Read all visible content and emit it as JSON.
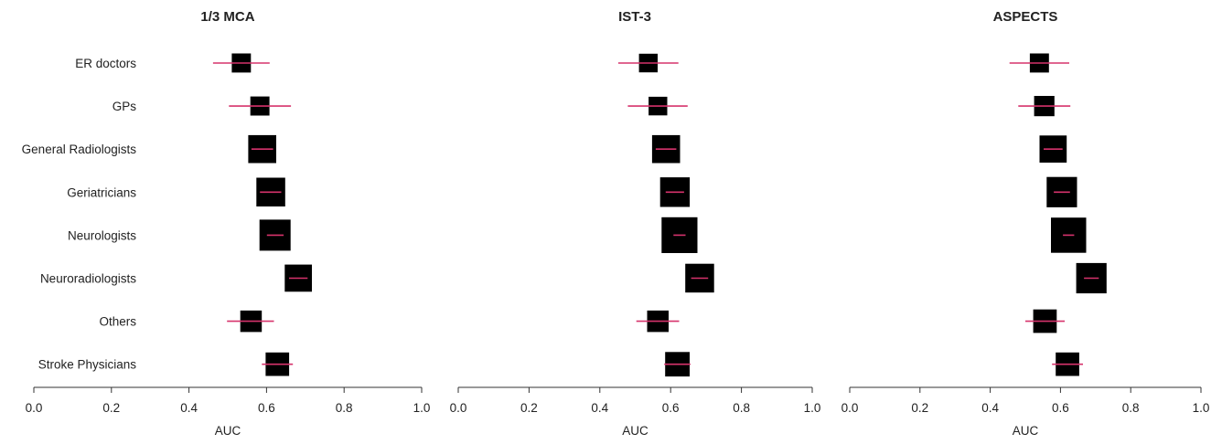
{
  "chart_data": [
    {
      "type": "forest",
      "title": "1/3 MCA",
      "xlabel": "AUC",
      "xlim": [
        0.0,
        1.0
      ],
      "xticks": [
        "0.0",
        "0.2",
        "0.4",
        "0.6",
        "0.8",
        "1.0"
      ],
      "categories": [
        "ER doctors",
        "GPs",
        "General Radiologists",
        "Geriatricians",
        "Neurologists",
        "Neuroradiologists",
        "Others",
        "Stroke Physicians"
      ],
      "estimates": [
        0.535,
        0.583,
        0.589,
        0.611,
        0.622,
        0.682,
        0.56,
        0.628
      ],
      "ci_low": [
        0.462,
        0.503,
        0.561,
        0.583,
        0.601,
        0.658,
        0.498,
        0.588
      ],
      "ci_high": [
        0.608,
        0.663,
        0.617,
        0.638,
        0.644,
        0.706,
        0.619,
        0.668
      ],
      "weights": [
        0.35,
        0.35,
        0.8,
        0.85,
        1.0,
        0.75,
        0.45,
        0.55
      ]
    },
    {
      "type": "forest",
      "title": "IST-3",
      "xlabel": "AUC",
      "xlim": [
        0.0,
        1.0
      ],
      "xticks": [
        "0.0",
        "0.2",
        "0.4",
        "0.6",
        "0.8",
        "1.0"
      ],
      "categories": [
        "ER doctors",
        "GPs",
        "General Radiologists",
        "Geriatricians",
        "Neurologists",
        "Neuroradiologists",
        "Others",
        "Stroke Physicians"
      ],
      "estimates": [
        0.537,
        0.564,
        0.587,
        0.612,
        0.625,
        0.682,
        0.564,
        0.619
      ],
      "ci_low": [
        0.452,
        0.479,
        0.558,
        0.586,
        0.608,
        0.658,
        0.503,
        0.582
      ],
      "ci_high": [
        0.622,
        0.648,
        0.616,
        0.638,
        0.642,
        0.706,
        0.624,
        0.656
      ],
      "weights": [
        0.33,
        0.33,
        0.8,
        0.9,
        1.35,
        0.85,
        0.45,
        0.6
      ]
    },
    {
      "type": "forest",
      "title": "ASPECTS",
      "xlabel": "AUC",
      "xlim": [
        0.0,
        1.0
      ],
      "xticks": [
        "0.0",
        "0.2",
        "0.4",
        "0.6",
        "0.8",
        "1.0"
      ],
      "categories": [
        "ER doctors",
        "GPs",
        "General Radiologists",
        "Geriatricians",
        "Neurologists",
        "Neuroradiologists",
        "Others",
        "Stroke Physicians"
      ],
      "estimates": [
        0.54,
        0.554,
        0.579,
        0.604,
        0.623,
        0.688,
        0.556,
        0.62
      ],
      "ci_low": [
        0.455,
        0.48,
        0.552,
        0.581,
        0.607,
        0.667,
        0.5,
        0.576
      ],
      "ci_high": [
        0.625,
        0.628,
        0.606,
        0.627,
        0.639,
        0.709,
        0.612,
        0.664
      ],
      "weights": [
        0.35,
        0.4,
        0.75,
        0.95,
        1.3,
        0.95,
        0.55,
        0.55
      ]
    }
  ],
  "colors": {
    "point": "#000000",
    "ci": "#d6336c",
    "axis": "#333333"
  }
}
